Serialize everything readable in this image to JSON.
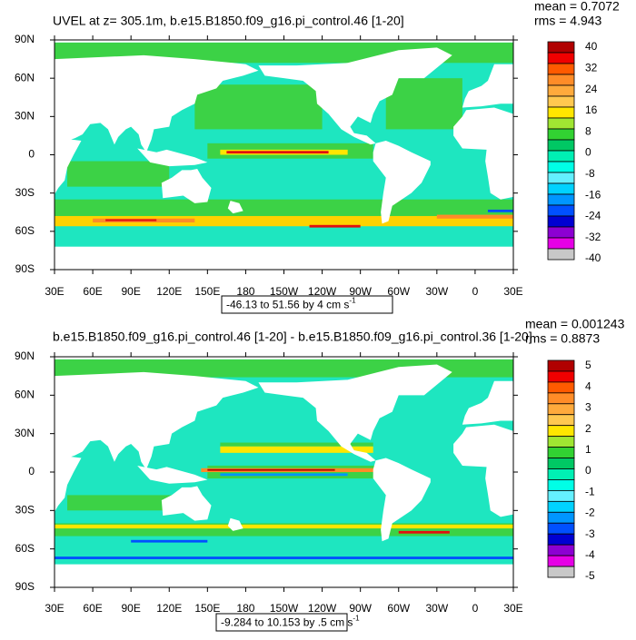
{
  "panels": [
    {
      "title": "UVEL at z= 305.1m, b.e15.B1850.f09_g16.pi_control.46 [1-20]",
      "mean": "mean = 0.7072",
      "rms": "rms = 4.943",
      "xticks": [
        "30E",
        "60E",
        "90E",
        "120E",
        "150E",
        "180",
        "150W",
        "120W",
        "90W",
        "60W",
        "30W",
        "0",
        "30E"
      ],
      "yticks": [
        "90N",
        "60N",
        "30N",
        "0",
        "30S",
        "60S",
        "90S"
      ],
      "colorbar": {
        "labels": [
          40,
          32,
          24,
          16,
          8,
          0,
          -8,
          -16,
          -24,
          -32,
          -40
        ],
        "colors": [
          "#b00000",
          "#f00000",
          "#ff5a00",
          "#ff8c28",
          "#ffaa3c",
          "#ffc850",
          "#ffe600",
          "#a0e632",
          "#32d232",
          "#00c864",
          "#00f0b4",
          "#00ffe6",
          "#64f0ff",
          "#00d2ff",
          "#0096ff",
          "#0050ff",
          "#0000d2",
          "#8c00d2",
          "#e600e6",
          "#c8c8c8"
        ]
      },
      "info": {
        "text": "-46.13 to 51.56 by 4 cm s",
        "sup": "-1"
      }
    },
    {
      "title": "b.e15.B1850.f09_g16.pi_control.46 [1-20] - b.e15.B1850.f09_g16.pi_control.36 [1-20]",
      "mean": "mean = 0.001243",
      "rms": "rms = 0.8873",
      "xticks": [
        "30E",
        "60E",
        "90E",
        "120E",
        "150E",
        "180",
        "150W",
        "120W",
        "90W",
        "60W",
        "30W",
        "0",
        "30E"
      ],
      "yticks": [
        "90N",
        "60N",
        "30N",
        "0",
        "30S",
        "60S",
        "90S"
      ],
      "colorbar": {
        "labels": [
          5,
          4,
          3,
          2,
          1,
          0,
          -1,
          -2,
          -3,
          -4,
          -5
        ],
        "colors": [
          "#b00000",
          "#f00000",
          "#ff5a00",
          "#ff8c28",
          "#ffaa3c",
          "#ffc850",
          "#ffe600",
          "#a0e632",
          "#32d232",
          "#00c864",
          "#00f0b4",
          "#00ffe6",
          "#64f0ff",
          "#00d2ff",
          "#0096ff",
          "#0050ff",
          "#0000d2",
          "#8c00d2",
          "#e600e6",
          "#c8c8c8"
        ]
      },
      "info": {
        "text": "-9.284 to 10.153 by .5 cm s",
        "sup": "-1"
      }
    }
  ]
}
